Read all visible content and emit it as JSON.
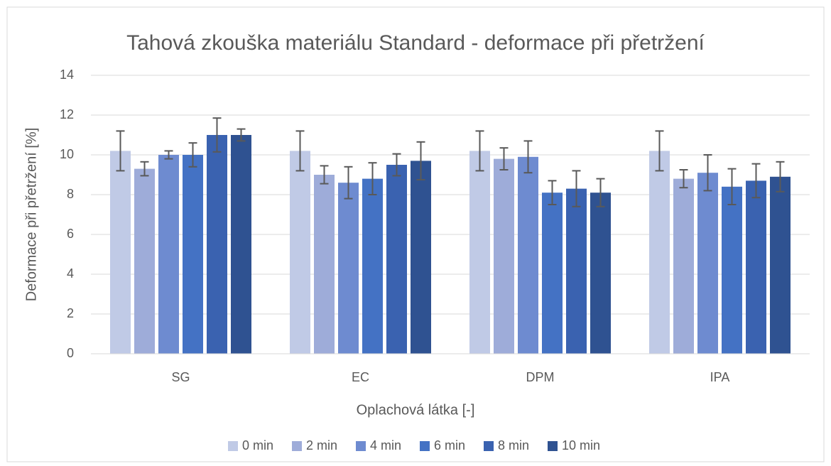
{
  "chart_data": {
    "type": "bar",
    "title": "Tahová zkouška materiálu Standard - deformace při přetržení",
    "x_label": "Oplachová látka [-]",
    "y_label": "Deformace při přetržení [%]",
    "categories": [
      "SG",
      "EC",
      "DPM",
      "IPA"
    ],
    "series": [
      {
        "name": "0 min",
        "color": "#c0cae6",
        "values": [
          10.2,
          10.2,
          10.2,
          10.2
        ],
        "errors": [
          1.0,
          1.0,
          1.0,
          1.0
        ]
      },
      {
        "name": "2 min",
        "color": "#9eacd9",
        "values": [
          9.3,
          9.0,
          9.8,
          8.8
        ],
        "errors": [
          0.35,
          0.45,
          0.55,
          0.45
        ]
      },
      {
        "name": "4 min",
        "color": "#6e8bd0",
        "values": [
          10.0,
          8.6,
          9.9,
          9.1
        ],
        "errors": [
          0.2,
          0.8,
          0.8,
          0.9
        ]
      },
      {
        "name": "6 min",
        "color": "#4472c4",
        "values": [
          10.0,
          8.8,
          8.1,
          8.4
        ],
        "errors": [
          0.6,
          0.8,
          0.6,
          0.9
        ]
      },
      {
        "name": "8 min",
        "color": "#3a62b0",
        "values": [
          11.0,
          9.5,
          8.3,
          8.7
        ],
        "errors": [
          0.85,
          0.55,
          0.9,
          0.85
        ]
      },
      {
        "name": "10 min",
        "color": "#2f5291",
        "values": [
          11.0,
          9.7,
          8.1,
          8.9
        ],
        "errors": [
          0.3,
          0.95,
          0.7,
          0.75
        ]
      }
    ],
    "ylim": [
      0,
      14
    ],
    "yticks": [
      0,
      2,
      4,
      6,
      8,
      10,
      12,
      14
    ],
    "grid": true,
    "legend": "bottom"
  }
}
